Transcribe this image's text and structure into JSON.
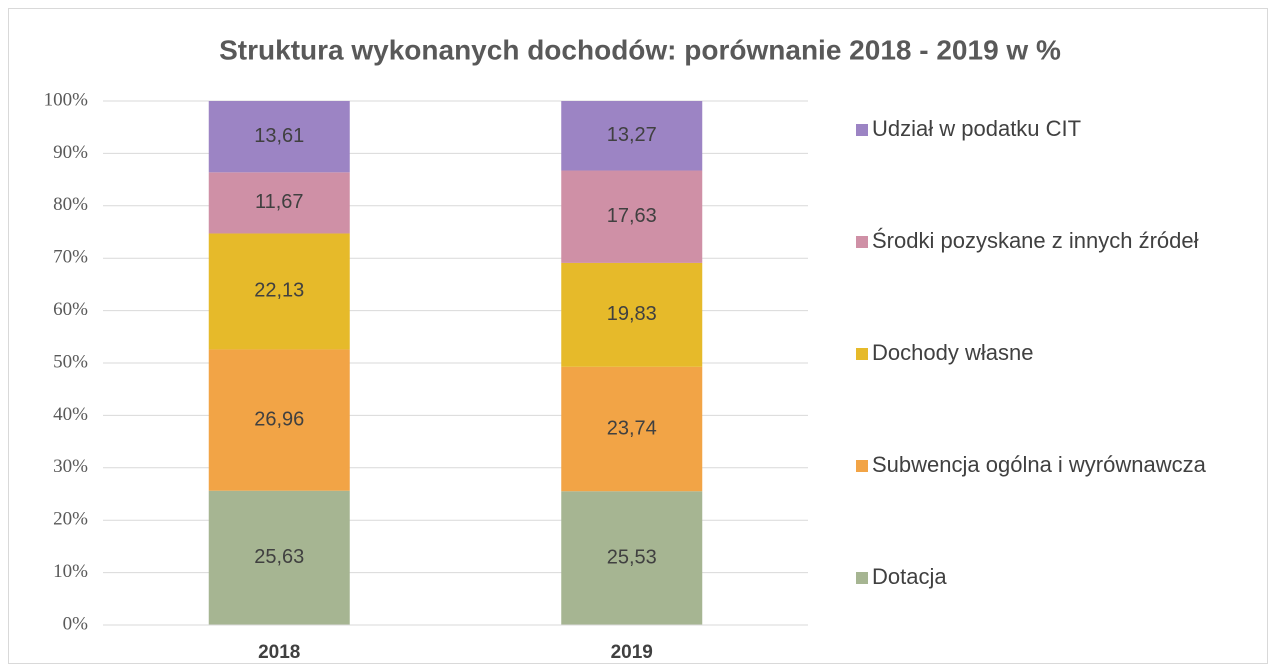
{
  "chart_data": {
    "type": "stacked_bar",
    "title": "Struktura wykonanych dochodów: porównanie 2018 - 2019 w %",
    "categories": [
      "2018",
      "2019"
    ],
    "series": [
      {
        "name": "Dotacja",
        "color": "#a6b592",
        "values": [
          25.63,
          25.53
        ],
        "value_labels": [
          "25,63",
          "25,53"
        ]
      },
      {
        "name": "Subwencja ogólna i wyrównawcza",
        "color": "#f2a446",
        "values": [
          26.96,
          23.74
        ],
        "value_labels": [
          "26,96",
          "23,74"
        ]
      },
      {
        "name": "Dochody własne",
        "color": "#e6ba2a",
        "values": [
          22.13,
          19.83
        ],
        "value_labels": [
          "22,13",
          "19,83"
        ]
      },
      {
        "name": "Środki pozyskane z innych źródeł",
        "color": "#cf90a6",
        "values": [
          11.67,
          17.63
        ],
        "value_labels": [
          "11,67",
          "17,63"
        ]
      },
      {
        "name": "Udział w podatku CIT",
        "color": "#9c84c4",
        "values": [
          13.61,
          13.27
        ],
        "value_labels": [
          "13,61",
          "13,27"
        ]
      }
    ],
    "ylim": [
      0,
      100
    ],
    "yticks": [
      {
        "value": 0,
        "label": "0%"
      },
      {
        "value": 10,
        "label": "10%"
      },
      {
        "value": 20,
        "label": "20%"
      },
      {
        "value": 30,
        "label": "30%"
      },
      {
        "value": 40,
        "label": "40%"
      },
      {
        "value": 50,
        "label": "50%"
      },
      {
        "value": 60,
        "label": "60%"
      },
      {
        "value": 70,
        "label": "70%"
      },
      {
        "value": 80,
        "label": "80%"
      },
      {
        "value": 90,
        "label": "90%"
      },
      {
        "value": 100,
        "label": "100%"
      }
    ],
    "grid": true,
    "legend": "right"
  }
}
